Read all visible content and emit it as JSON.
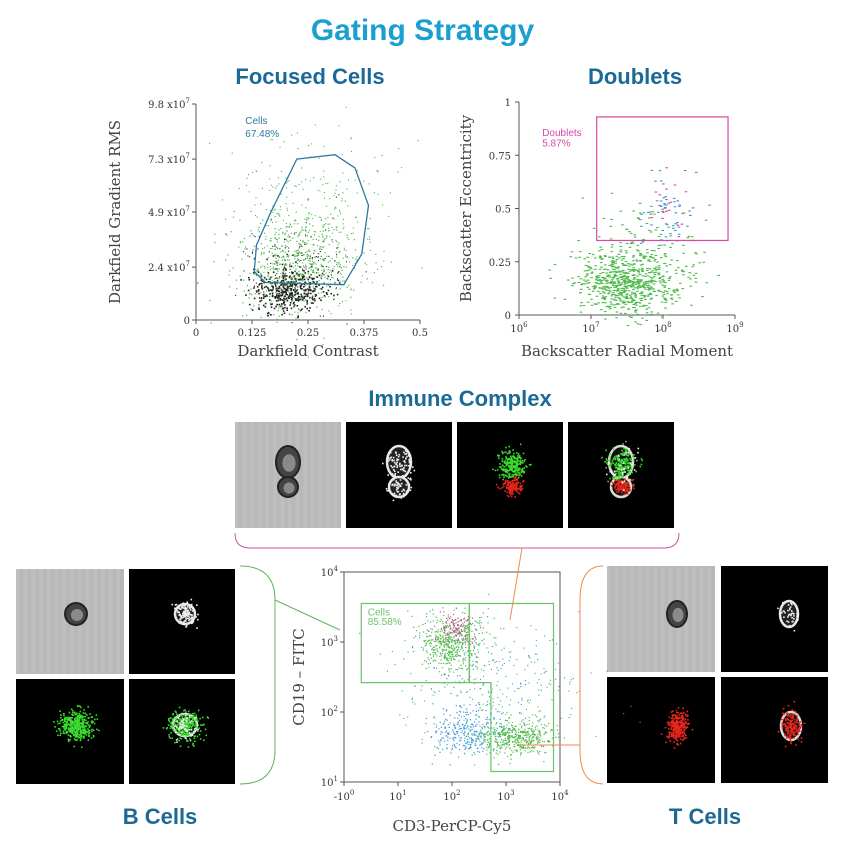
{
  "title": "Gating Strategy",
  "focused": {
    "title": "Focused Cells",
    "chart_data": {
      "type": "scatter",
      "xlabel": "Darkfield Contrast",
      "ylabel": "Darkfield Gradient RMS",
      "xlim": [
        0,
        0.5
      ],
      "ylim": [
        0,
        98000000
      ],
      "x_ticks": [
        "0",
        "0.125",
        "0.25",
        "0.375",
        "0.5"
      ],
      "y_ticks": [
        {
          "v": 0,
          "m": "0",
          "e": ""
        },
        {
          "v": 24000000,
          "m": "2.4 x10",
          "e": "7"
        },
        {
          "v": 49000000,
          "m": "4.9 x10",
          "e": "7"
        },
        {
          "v": 73000000,
          "m": "7.3 x10",
          "e": "7"
        },
        {
          "v": 98000000,
          "m": "9.8 x10",
          "e": "7"
        }
      ],
      "gate": {
        "label": "Cells",
        "percent": "67.48%",
        "color": "#2e7aa0"
      },
      "series": [
        {
          "color": "#4cba4a"
        },
        {
          "color": "#222222"
        }
      ]
    }
  },
  "doublets": {
    "title": "Doublets",
    "chart_data": {
      "type": "scatter",
      "xlabel": "Backscatter Radial Moment",
      "ylabel": "Backscatter Eccentricity",
      "xscale": "log",
      "xlim": [
        1000000,
        1000000000
      ],
      "ylim": [
        0,
        1
      ],
      "x_ticks": [
        {
          "m": "10",
          "e": "6"
        },
        {
          "m": "10",
          "e": "7"
        },
        {
          "m": "10",
          "e": "8"
        },
        {
          "m": "10",
          "e": "9"
        }
      ],
      "y_ticks": [
        "0",
        "0.25",
        "0.5",
        "0.75",
        "1"
      ],
      "gate": {
        "label": "Doublets",
        "percent": "5.87%",
        "color": "#d946a6"
      },
      "series": [
        {
          "color": "#4cba4a"
        },
        {
          "color": "#d946a6"
        },
        {
          "color": "#3a98d8"
        }
      ]
    }
  },
  "immune": {
    "title": "Immune Complex"
  },
  "cd": {
    "chart_data": {
      "type": "scatter",
      "xlabel": "CD3-PerCP-Cy5",
      "ylabel": "CD19 – FITC",
      "xscale": "log",
      "yscale": "log",
      "xlim": [
        -1,
        4
      ],
      "ylim": [
        1,
        4
      ],
      "x_ticks": [
        {
          "m": "-10",
          "e": "0"
        },
        {
          "m": "10",
          "e": "1"
        },
        {
          "m": "10",
          "e": "2"
        },
        {
          "m": "10",
          "e": "3"
        },
        {
          "m": "10",
          "e": "4"
        }
      ],
      "y_ticks": [
        {
          "m": "10",
          "e": "1"
        },
        {
          "m": "10",
          "e": "2"
        },
        {
          "m": "10",
          "e": "3"
        },
        {
          "m": "10",
          "e": "4"
        }
      ],
      "gate": {
        "label": "Cells",
        "percent": "85.58%",
        "color": "#6cc36a"
      },
      "series": [
        {
          "color": "#4cba4a"
        },
        {
          "color": "#3a98d8"
        },
        {
          "color": "#d946a6"
        }
      ]
    }
  },
  "bcells": {
    "title": "B Cells"
  },
  "tcells": {
    "title": "T Cells"
  },
  "colors": {
    "title": "#1a9fd0",
    "heading": "#1b6a96",
    "pink_bracket": "#c9569e",
    "green_bracket": "#62b45e",
    "orange_bracket": "#f08a4b"
  }
}
